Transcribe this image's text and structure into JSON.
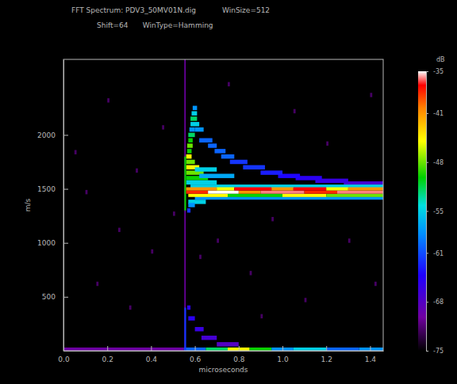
{
  "chart_data": {
    "type": "heatmap",
    "title": "FFT Spectrum: PDV3_50MV01N.dig",
    "annotations": [
      "WinSize=512",
      "Shift=64",
      "WinType=Hamming"
    ],
    "x_label": "microseconds",
    "y_label": "m/s",
    "xlim": [
      0,
      1.46
    ],
    "ylim": [
      0,
      2700
    ],
    "xticks": [
      {
        "value": 0,
        "label": "0.0"
      },
      {
        "value": 0.2,
        "label": "0.2"
      },
      {
        "value": 0.4,
        "label": "0.4"
      },
      {
        "value": 0.6,
        "label": "0.6"
      },
      {
        "value": 0.8,
        "label": "0.8"
      },
      {
        "value": 1.0,
        "label": "1.0"
      },
      {
        "value": 1.2,
        "label": "1.2"
      },
      {
        "value": 1.4,
        "label": "1.4"
      }
    ],
    "yticks": [
      500,
      1000,
      1500,
      2000
    ],
    "colorbar": {
      "label": "dB",
      "lim": [
        -75,
        -35
      ],
      "ticks": [
        -35,
        -41,
        -48,
        -55,
        -61,
        -68,
        -75
      ]
    },
    "cells": [
      [
        0.552,
        0.558,
        0,
        2700,
        -70
      ],
      [
        0.05,
        0.06,
        1820,
        1860,
        -72
      ],
      [
        0.1,
        0.11,
        1450,
        1490,
        -72
      ],
      [
        0.15,
        0.16,
        600,
        640,
        -72
      ],
      [
        0.2,
        0.21,
        2300,
        2340,
        -72
      ],
      [
        0.25,
        0.26,
        1100,
        1140,
        -72
      ],
      [
        0.3,
        0.31,
        380,
        420,
        -72
      ],
      [
        0.33,
        0.34,
        1650,
        1690,
        -72
      ],
      [
        0.4,
        0.41,
        900,
        940,
        -72
      ],
      [
        0.45,
        0.46,
        2050,
        2090,
        -72
      ],
      [
        0.5,
        0.51,
        1250,
        1290,
        -72
      ],
      [
        0.7,
        0.71,
        1000,
        1040,
        -72
      ],
      [
        0.75,
        0.76,
        2450,
        2490,
        -72
      ],
      [
        0.85,
        0.86,
        700,
        740,
        -72
      ],
      [
        0.95,
        0.96,
        1200,
        1240,
        -72
      ],
      [
        1.05,
        1.06,
        2200,
        2240,
        -72
      ],
      [
        1.1,
        1.11,
        450,
        490,
        -72
      ],
      [
        1.2,
        1.21,
        1900,
        1940,
        -72
      ],
      [
        1.3,
        1.31,
        1000,
        1040,
        -72
      ],
      [
        1.4,
        1.41,
        2350,
        2390,
        -72
      ],
      [
        1.42,
        1.43,
        600,
        640,
        -72
      ],
      [
        0.62,
        0.63,
        850,
        890,
        -72
      ],
      [
        0.9,
        0.91,
        300,
        340,
        -72
      ],
      [
        0.0,
        0.55,
        0,
        30,
        -70
      ],
      [
        0.55,
        0.65,
        0,
        30,
        -60
      ],
      [
        0.65,
        0.75,
        0,
        30,
        -52
      ],
      [
        0.75,
        0.85,
        0,
        30,
        -45
      ],
      [
        0.85,
        0.95,
        0,
        30,
        -50
      ],
      [
        0.95,
        1.05,
        0,
        30,
        -58
      ],
      [
        1.05,
        1.2,
        0,
        30,
        -55
      ],
      [
        1.2,
        1.35,
        0,
        30,
        -60
      ],
      [
        1.35,
        1.46,
        0,
        30,
        -58
      ],
      [
        0.565,
        0.58,
        380,
        420,
        -65
      ],
      [
        0.57,
        0.6,
        280,
        320,
        -65
      ],
      [
        0.6,
        0.64,
        180,
        220,
        -66
      ],
      [
        0.63,
        0.7,
        100,
        140,
        -67
      ],
      [
        0.7,
        0.8,
        40,
        80,
        -68
      ],
      [
        0.552,
        0.56,
        0,
        400,
        -62
      ],
      [
        1.28,
        1.46,
        1530,
        1570,
        -67
      ],
      [
        1.15,
        1.3,
        1555,
        1595,
        -66
      ],
      [
        1.06,
        1.18,
        1580,
        1620,
        -65
      ],
      [
        0.98,
        1.08,
        1600,
        1640,
        -64
      ],
      [
        0.9,
        1.0,
        1630,
        1670,
        -63
      ],
      [
        0.82,
        0.92,
        1680,
        1720,
        -62
      ],
      [
        0.76,
        0.84,
        1730,
        1770,
        -62
      ],
      [
        0.72,
        0.78,
        1780,
        1820,
        -60
      ],
      [
        0.69,
        0.74,
        1830,
        1870,
        -60
      ],
      [
        0.66,
        0.7,
        1880,
        1920,
        -60
      ],
      [
        0.62,
        0.68,
        1930,
        1970,
        -60
      ],
      [
        0.6,
        0.64,
        2030,
        2070,
        -58
      ],
      [
        0.59,
        0.61,
        2230,
        2270,
        -58
      ],
      [
        0.585,
        0.61,
        2180,
        2220,
        -55
      ],
      [
        0.58,
        0.61,
        2130,
        2170,
        -52
      ],
      [
        0.58,
        0.62,
        2080,
        2120,
        -55
      ],
      [
        0.575,
        0.6,
        2030,
        2070,
        -58
      ],
      [
        0.57,
        0.6,
        1980,
        2020,
        -52
      ],
      [
        0.57,
        0.59,
        1930,
        1970,
        -50
      ],
      [
        0.565,
        0.59,
        1880,
        1920,
        -48
      ],
      [
        0.565,
        0.585,
        1830,
        1870,
        -50
      ],
      [
        0.56,
        0.585,
        1780,
        1820,
        -45
      ],
      [
        0.56,
        0.6,
        1730,
        1770,
        -48
      ],
      [
        0.56,
        0.62,
        1680,
        1720,
        -45
      ],
      [
        0.56,
        0.64,
        1630,
        1670,
        -48
      ],
      [
        0.56,
        0.66,
        1580,
        1620,
        -50
      ],
      [
        0.56,
        0.7,
        1540,
        1580,
        -55
      ],
      [
        0.6,
        0.7,
        1660,
        1700,
        -55
      ],
      [
        0.62,
        0.78,
        1600,
        1640,
        -57
      ],
      [
        0.552,
        0.56,
        1300,
        1800,
        -50
      ],
      [
        0.57,
        0.65,
        1360,
        1400,
        -55
      ],
      [
        0.57,
        0.6,
        1330,
        1370,
        -58
      ],
      [
        0.565,
        0.58,
        1280,
        1320,
        -62
      ],
      [
        0.6,
        1.46,
        1400,
        1430,
        -58
      ],
      [
        0.58,
        1.46,
        1510,
        1540,
        -55
      ],
      [
        0.57,
        0.75,
        1425,
        1455,
        -45
      ],
      [
        0.75,
        1.0,
        1425,
        1455,
        -50
      ],
      [
        1.0,
        1.2,
        1425,
        1455,
        -45
      ],
      [
        1.2,
        1.46,
        1425,
        1455,
        -48
      ],
      [
        0.56,
        0.66,
        1455,
        1485,
        -38
      ],
      [
        0.66,
        0.8,
        1455,
        1485,
        -35
      ],
      [
        0.8,
        0.9,
        1455,
        1485,
        -41
      ],
      [
        0.9,
        1.1,
        1455,
        1485,
        -36
      ],
      [
        1.1,
        1.25,
        1455,
        1485,
        -38
      ],
      [
        1.25,
        1.46,
        1455,
        1485,
        -36
      ],
      [
        0.56,
        0.7,
        1485,
        1515,
        -41
      ],
      [
        0.7,
        0.78,
        1485,
        1515,
        -45
      ],
      [
        0.78,
        0.95,
        1485,
        1515,
        -37
      ],
      [
        0.95,
        1.05,
        1485,
        1515,
        -41
      ],
      [
        1.05,
        1.2,
        1485,
        1515,
        -37
      ],
      [
        1.2,
        1.3,
        1485,
        1515,
        -45
      ],
      [
        1.3,
        1.46,
        1485,
        1515,
        -41
      ]
    ]
  }
}
